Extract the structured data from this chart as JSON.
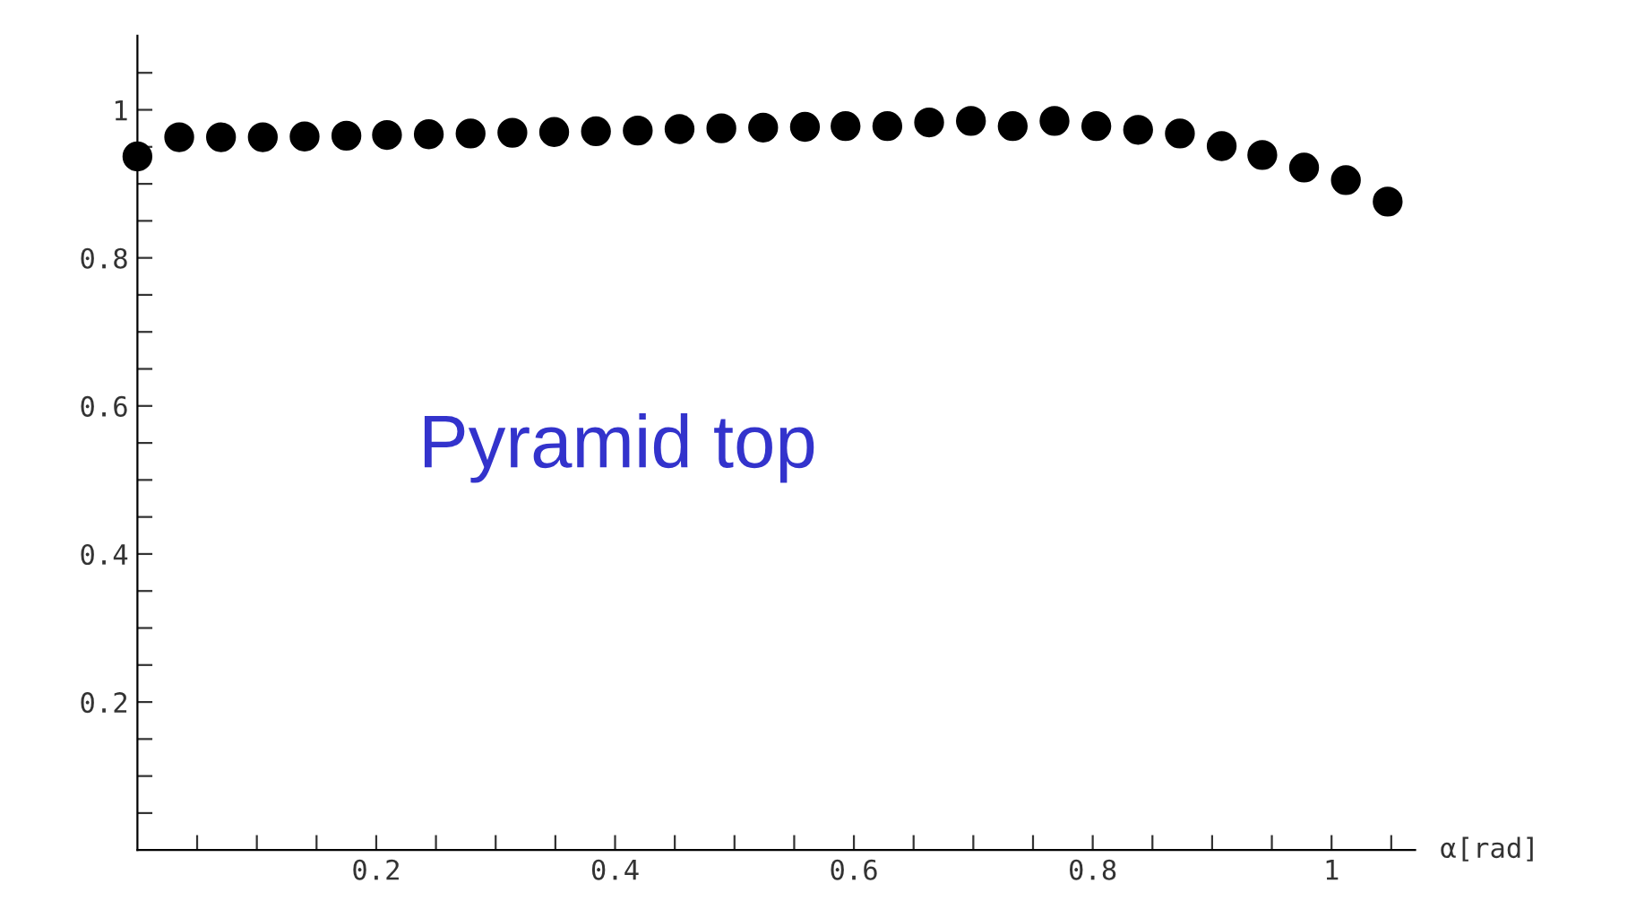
{
  "chart_data": {
    "type": "scatter",
    "xlabel": "α[rad]",
    "annotations": [
      "Pyramid top"
    ],
    "x": [
      0,
      0.035,
      0.07,
      0.105,
      0.14,
      0.175,
      0.209,
      0.244,
      0.279,
      0.314,
      0.349,
      0.384,
      0.419,
      0.454,
      0.489,
      0.524,
      0.559,
      0.593,
      0.628,
      0.663,
      0.698,
      0.733,
      0.768,
      0.803,
      0.838,
      0.873,
      0.908,
      0.942,
      0.977,
      1.012,
      1.047
    ],
    "series": [
      {
        "color": "#000000",
        "values": [
          0.937,
          0.963,
          0.963,
          0.963,
          0.964,
          0.965,
          0.966,
          0.967,
          0.968,
          0.969,
          0.97,
          0.971,
          0.972,
          0.974,
          0.975,
          0.976,
          0.977,
          0.978,
          0.978,
          0.983,
          0.985,
          0.978,
          0.985,
          0.978,
          0.973,
          0.968,
          0.951,
          0.939,
          0.922,
          0.905,
          0.876
        ]
      }
    ],
    "marker": "circle",
    "grid": false,
    "xlim": [
      0,
      1.07
    ],
    "ylim": [
      0,
      1.1
    ],
    "xticks": [
      {
        "value": 0.05,
        "label": null
      },
      {
        "value": 0.1,
        "label": null
      },
      {
        "value": 0.15,
        "label": null
      },
      0.2,
      {
        "value": 0.25,
        "label": null
      },
      {
        "value": 0.3,
        "label": null
      },
      {
        "value": 0.35,
        "label": null
      },
      0.4,
      {
        "value": 0.45,
        "label": null
      },
      {
        "value": 0.5,
        "label": null
      },
      {
        "value": 0.55,
        "label": null
      },
      0.6,
      {
        "value": 0.65,
        "label": null
      },
      {
        "value": 0.7,
        "label": null
      },
      {
        "value": 0.75,
        "label": null
      },
      0.8,
      {
        "value": 0.85,
        "label": null
      },
      {
        "value": 0.9,
        "label": null
      },
      {
        "value": 0.95,
        "label": null
      },
      1,
      {
        "value": 1.05,
        "label": null
      }
    ],
    "yticks": [
      {
        "value": 0.05,
        "label": null
      },
      {
        "value": 0.1,
        "label": null
      },
      {
        "value": 0.15,
        "label": null
      },
      0.2,
      {
        "value": 0.25,
        "label": null
      },
      {
        "value": 0.3,
        "label": null
      },
      {
        "value": 0.35,
        "label": null
      },
      0.4,
      {
        "value": 0.45,
        "label": null
      },
      {
        "value": 0.5,
        "label": null
      },
      {
        "value": 0.55,
        "label": null
      },
      0.6,
      {
        "value": 0.65,
        "label": null
      },
      {
        "value": 0.7,
        "label": null
      },
      {
        "value": 0.75,
        "label": null
      },
      0.8,
      {
        "value": 0.85,
        "label": null
      },
      {
        "value": 0.9,
        "label": null
      },
      {
        "value": 0.95,
        "label": null
      },
      1,
      {
        "value": 1.05,
        "label": null
      }
    ]
  }
}
